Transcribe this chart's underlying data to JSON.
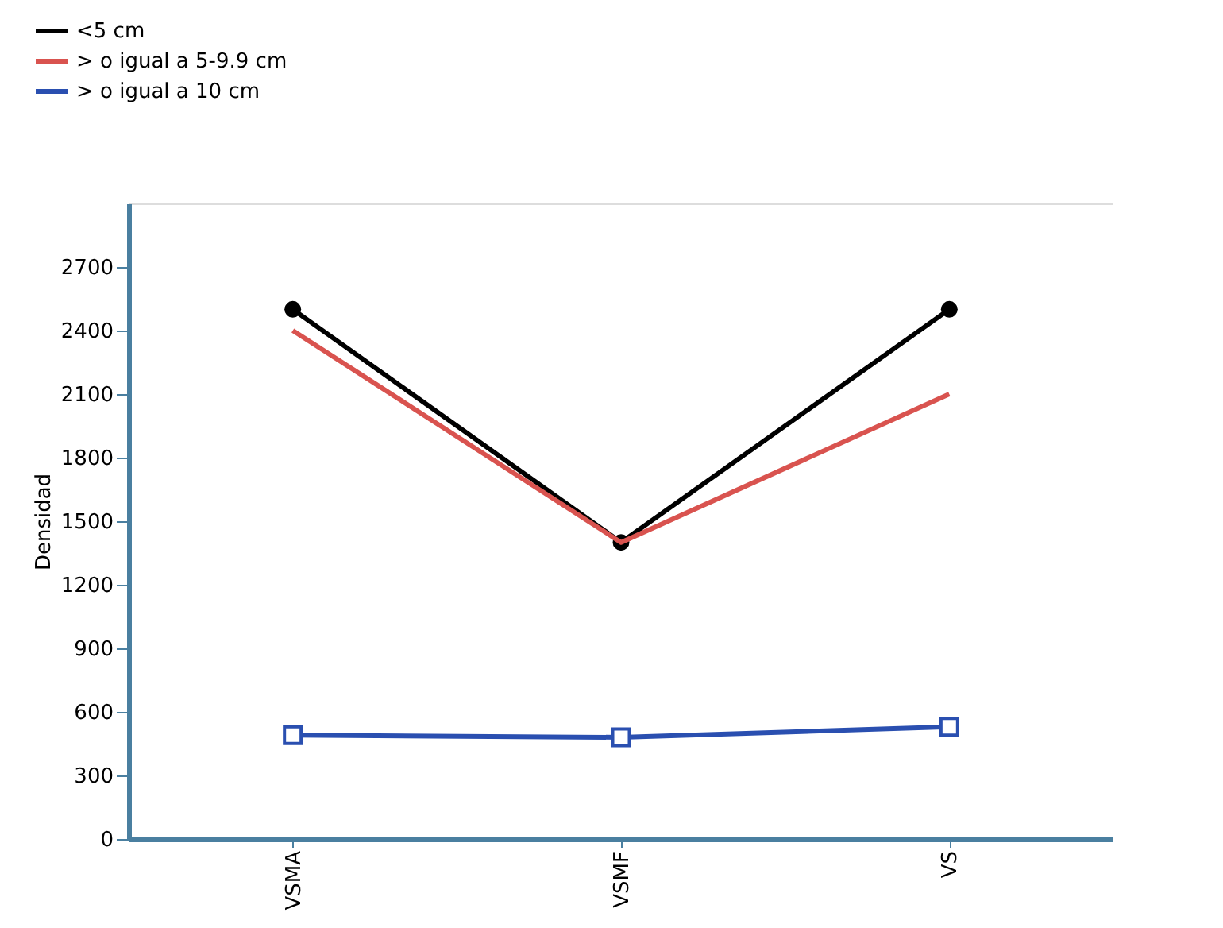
{
  "chart_data": {
    "type": "line",
    "ylabel": "Densidad",
    "categories": [
      "VSMA",
      "VSMF",
      "VS"
    ],
    "series": [
      {
        "name": "<5 cm",
        "color": "#000000",
        "marker": "circle",
        "values": [
          2500,
          1400,
          2500
        ]
      },
      {
        "name": "> o igual a 5-9.9 cm",
        "color": "#d9534f",
        "marker": "none",
        "values": [
          2400,
          1400,
          2100
        ]
      },
      {
        "name": "> o igual a 10 cm",
        "color": "#2a4fb0",
        "marker": "square",
        "values": [
          490,
          480,
          530
        ]
      }
    ],
    "ylim": [
      0,
      3000
    ],
    "yticks": [
      0,
      300,
      600,
      900,
      1200,
      1500,
      1800,
      2100,
      2400,
      2700
    ],
    "grid": false,
    "legend": "top left"
  }
}
